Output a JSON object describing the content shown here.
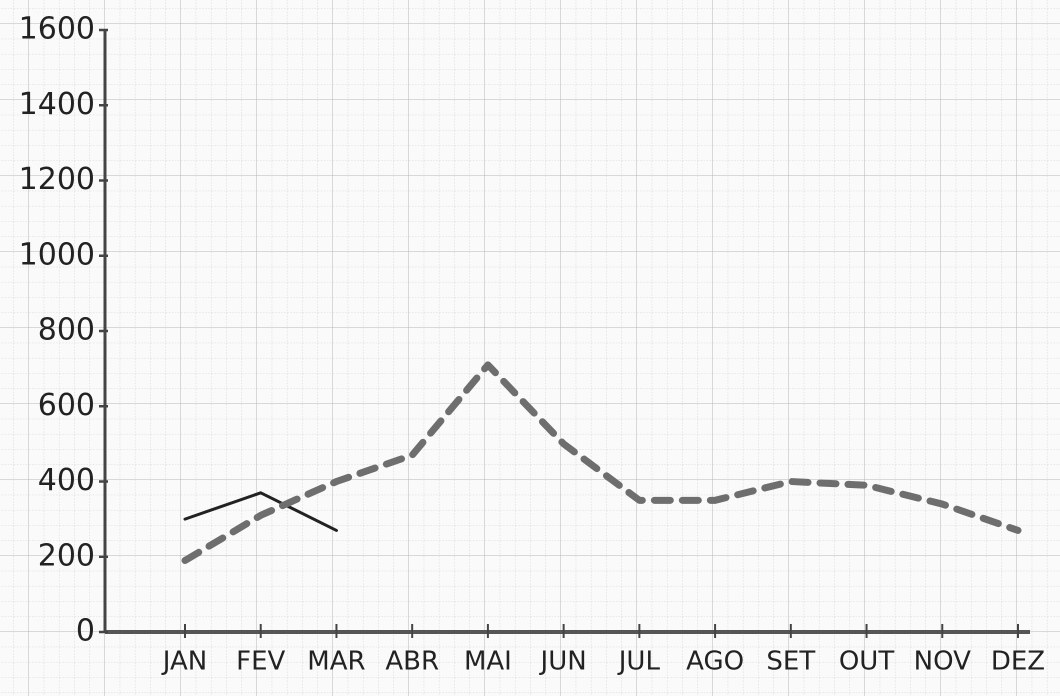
{
  "chart_data": {
    "type": "line",
    "categories": [
      "JAN",
      "FEV",
      "MAR",
      "ABR",
      "MAI",
      "JUN",
      "JUL",
      "AGO",
      "SET",
      "OUT",
      "NOV",
      "DEZ"
    ],
    "series": [
      {
        "color": "#222222",
        "dash": false,
        "values": [
          300,
          370,
          270,
          null,
          null,
          null,
          null,
          null,
          null,
          null,
          null,
          null
        ]
      },
      {
        "color": "#6e6e6e",
        "dash": true,
        "values": [
          190,
          310,
          400,
          470,
          710,
          500,
          350,
          350,
          400,
          390,
          340,
          270
        ]
      }
    ],
    "ylim": [
      0,
      1600
    ],
    "yticks": [
      0,
      200,
      400,
      600,
      800,
      1000,
      1200,
      1400,
      1600
    ]
  }
}
